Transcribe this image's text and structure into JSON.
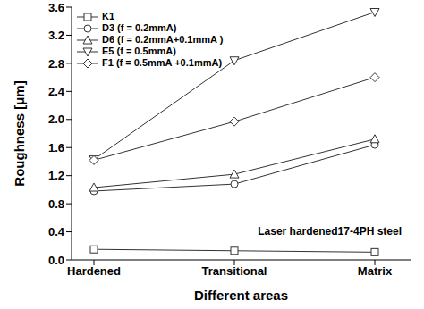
{
  "chart_data": {
    "type": "line",
    "x_label": "Different areas",
    "y_label": "Roughness [μm]",
    "annotation": "Laser hardened17-4PH steel",
    "categories": [
      "Hardened",
      "Transitional",
      "Matrix"
    ],
    "series": [
      {
        "name": "K1",
        "color": "#333333",
        "marker": "square",
        "values": [
          0.15,
          0.13,
          0.11
        ]
      },
      {
        "name": "D3 (f = 0.2mmA)",
        "color": "#333333",
        "marker": "circle",
        "values": [
          0.98,
          1.08,
          1.64
        ]
      },
      {
        "name": "D6 (f = 0.2mmA+0.1mmA )",
        "color": "#333333",
        "marker": "triangle-up",
        "values": [
          1.03,
          1.22,
          1.72
        ]
      },
      {
        "name": "E5 (f = 0.5mmA)",
        "color": "#333333",
        "marker": "triangle-down",
        "values": [
          1.43,
          2.84,
          3.53
        ]
      },
      {
        "name": "F1 (f = 0.5mmA +0.1mmA)",
        "color": "#333333",
        "marker": "diamond",
        "values": [
          1.42,
          1.97,
          2.6
        ]
      }
    ],
    "ylim": [
      0,
      3.6
    ],
    "yticks": [
      {
        "value": 0,
        "label": "0.0"
      },
      0.4,
      0.8,
      1.2,
      1.6,
      {
        "value": 2,
        "label": "2.0"
      },
      2.4,
      2.8,
      3.2,
      3.6
    ],
    "grid": false,
    "legend": "upper left"
  }
}
